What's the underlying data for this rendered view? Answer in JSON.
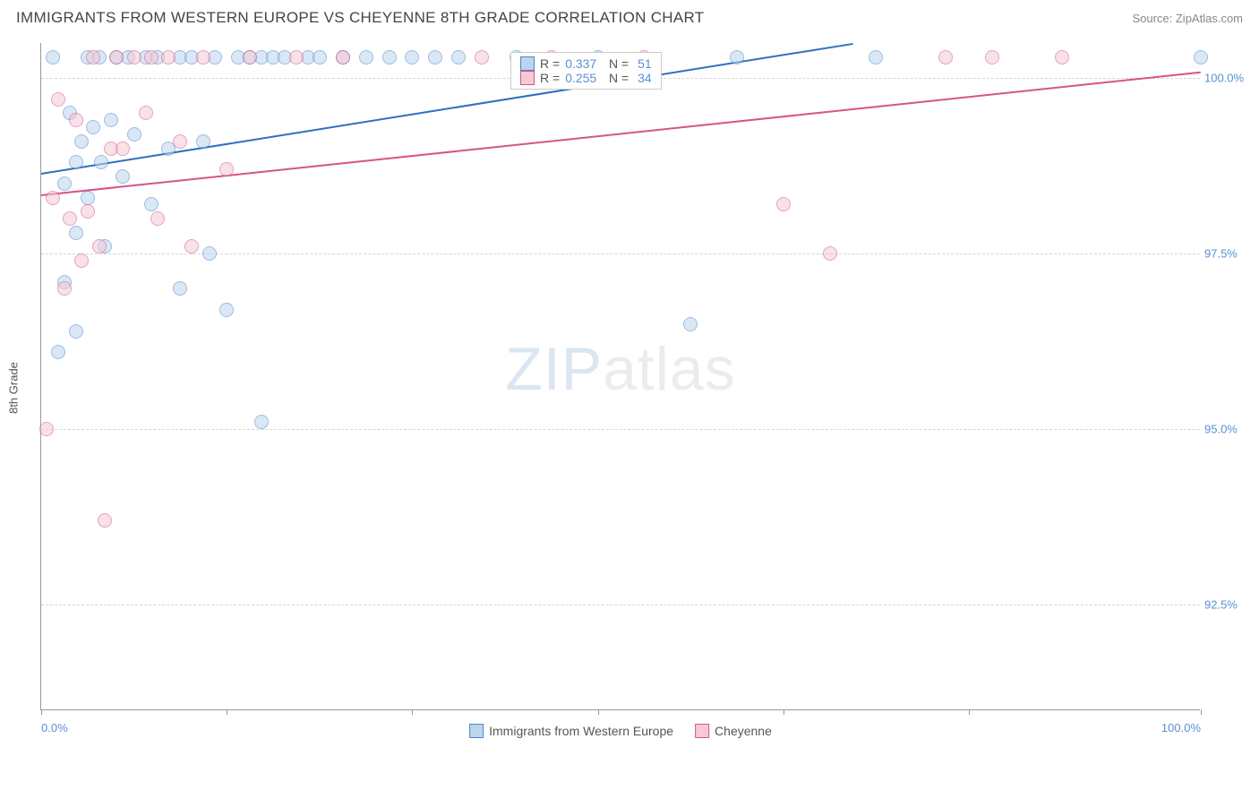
{
  "header": {
    "title": "IMMIGRANTS FROM WESTERN EUROPE VS CHEYENNE 8TH GRADE CORRELATION CHART",
    "source": "Source: ZipAtlas.com"
  },
  "chart": {
    "type": "scatter",
    "ylabel": "8th Grade",
    "background_color": "#ffffff",
    "grid_color": "#d5d5d5",
    "axis_color": "#999999",
    "tick_font_color": "#5a8fd6",
    "tick_fontsize": 13,
    "xlim": [
      0,
      100
    ],
    "ylim": [
      91,
      100.5
    ],
    "xtick_positions": [
      0,
      16,
      32,
      48,
      64,
      80,
      100
    ],
    "xtick_labels_shown": {
      "0": "0.0%",
      "100": "100.0%"
    },
    "ytick_positions": [
      92.5,
      95.0,
      97.5,
      100.0
    ],
    "ytick_labels": [
      "92.5%",
      "95.0%",
      "97.5%",
      "100.0%"
    ],
    "point_radius": 8,
    "point_border_width": 1.2,
    "series": [
      {
        "name": "Immigrants from Western Europe",
        "fill_color": "#bcd4ee",
        "stroke_color": "#4a87c9",
        "fill_opacity": 0.55,
        "R": "0.337",
        "N": "51",
        "trend": {
          "x1": 0,
          "y1": 98.65,
          "x2": 70,
          "y2": 100.5,
          "color": "#2f6fc0",
          "width": 2
        },
        "points": [
          [
            1,
            100.3
          ],
          [
            1.5,
            96.1
          ],
          [
            2,
            98.5
          ],
          [
            2,
            97.1
          ],
          [
            2.5,
            99.5
          ],
          [
            3,
            98.8
          ],
          [
            3,
            97.8
          ],
          [
            3,
            96.4
          ],
          [
            3.5,
            99.1
          ],
          [
            4,
            100.3
          ],
          [
            4,
            98.3
          ],
          [
            4.5,
            99.3
          ],
          [
            5,
            100.3
          ],
          [
            5.2,
            98.8
          ],
          [
            5.5,
            97.6
          ],
          [
            6,
            99.4
          ],
          [
            6.5,
            100.3
          ],
          [
            7,
            98.6
          ],
          [
            7.5,
            100.3
          ],
          [
            8,
            99.2
          ],
          [
            9,
            100.3
          ],
          [
            9.5,
            98.2
          ],
          [
            10,
            100.3
          ],
          [
            11,
            99.0
          ],
          [
            12,
            100.3
          ],
          [
            12,
            97.0
          ],
          [
            13,
            100.3
          ],
          [
            14,
            99.1
          ],
          [
            14.5,
            97.5
          ],
          [
            15,
            100.3
          ],
          [
            16,
            96.7
          ],
          [
            17,
            100.3
          ],
          [
            18,
            100.3
          ],
          [
            19,
            100.3
          ],
          [
            19,
            95.1
          ],
          [
            20,
            100.3
          ],
          [
            21,
            100.3
          ],
          [
            23,
            100.3
          ],
          [
            24,
            100.3
          ],
          [
            26,
            100.3
          ],
          [
            28,
            100.3
          ],
          [
            30,
            100.3
          ],
          [
            32,
            100.3
          ],
          [
            34,
            100.3
          ],
          [
            36,
            100.3
          ],
          [
            41,
            100.3
          ],
          [
            48,
            100.3
          ],
          [
            56,
            96.5
          ],
          [
            60,
            100.3
          ],
          [
            72,
            100.3
          ],
          [
            100,
            100.3
          ]
        ]
      },
      {
        "name": "Cheyenne",
        "fill_color": "#f5c9d6",
        "stroke_color": "#d6548a",
        "fill_opacity": 0.55,
        "R": "0.255",
        "N": "34",
        "trend": {
          "x1": 0,
          "y1": 98.35,
          "x2": 100,
          "y2": 100.1,
          "color": "#d6548a",
          "width": 2
        },
        "points": [
          [
            0.5,
            95.0
          ],
          [
            1,
            98.3
          ],
          [
            1.5,
            99.7
          ],
          [
            2,
            97.0
          ],
          [
            2.5,
            98.0
          ],
          [
            3,
            99.4
          ],
          [
            3.5,
            97.4
          ],
          [
            4,
            98.1
          ],
          [
            4.5,
            100.3
          ],
          [
            5,
            97.6
          ],
          [
            5.5,
            93.7
          ],
          [
            6,
            99.0
          ],
          [
            6.5,
            100.3
          ],
          [
            7,
            99.0
          ],
          [
            8,
            100.3
          ],
          [
            9,
            99.5
          ],
          [
            9.5,
            100.3
          ],
          [
            10,
            98.0
          ],
          [
            11,
            100.3
          ],
          [
            12,
            99.1
          ],
          [
            13,
            97.6
          ],
          [
            14,
            100.3
          ],
          [
            16,
            98.7
          ],
          [
            18,
            100.3
          ],
          [
            22,
            100.3
          ],
          [
            26,
            100.3
          ],
          [
            38,
            100.3
          ],
          [
            44,
            100.3
          ],
          [
            52,
            100.3
          ],
          [
            64,
            98.2
          ],
          [
            68,
            97.5
          ],
          [
            78,
            100.3
          ],
          [
            82,
            100.3
          ],
          [
            88,
            100.3
          ]
        ]
      }
    ],
    "watermark": {
      "part1": "ZIP",
      "part2": "atlas"
    }
  }
}
